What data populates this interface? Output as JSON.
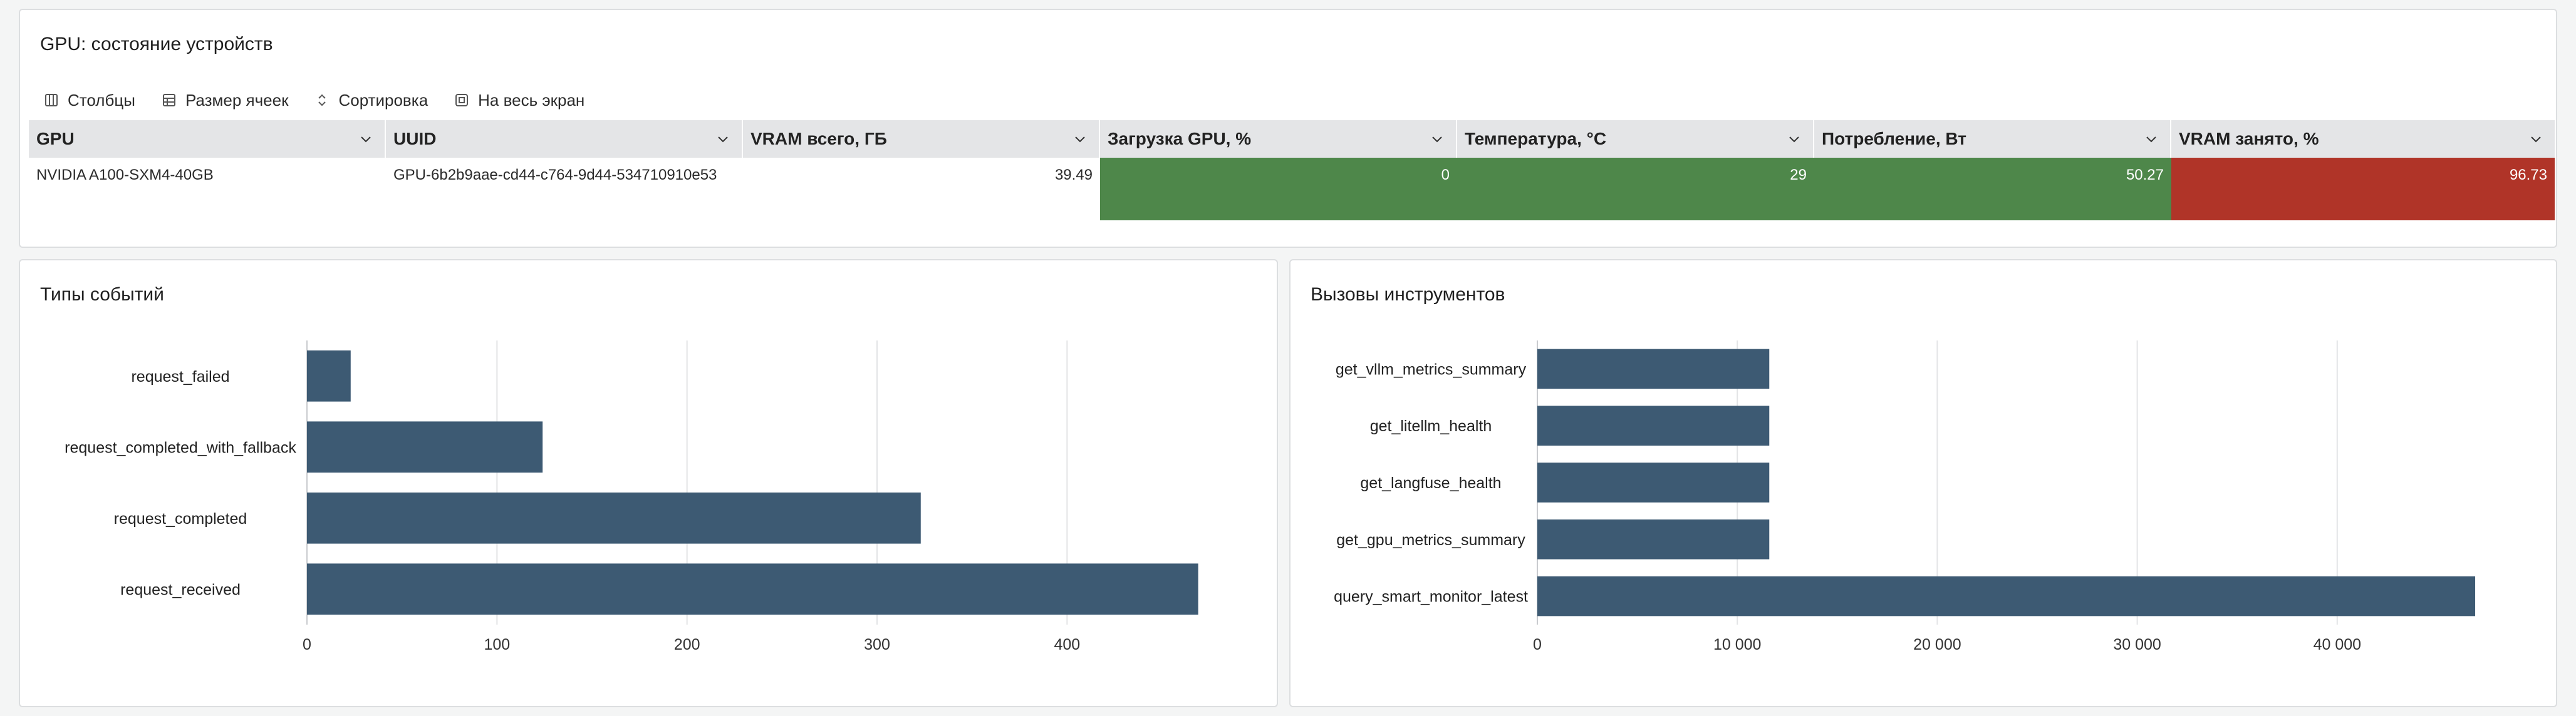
{
  "gpu_panel": {
    "title": "GPU: состояние устройств",
    "toolbar": {
      "columns": "Столбцы",
      "cell_size": "Размер ячеек",
      "sort": "Сортировка",
      "fullscreen": "На весь экран"
    },
    "columns": [
      {
        "key": "gpu",
        "label": "GPU"
      },
      {
        "key": "uuid",
        "label": "UUID"
      },
      {
        "key": "vram_total",
        "label": "VRAM всего, ГБ"
      },
      {
        "key": "gpu_load",
        "label": "Загрузка GPU, %"
      },
      {
        "key": "temperature",
        "label": "Температура, °C"
      },
      {
        "key": "power",
        "label": "Потребление, Вт"
      },
      {
        "key": "vram_used",
        "label": "VRAM занято, %"
      }
    ],
    "rows": [
      {
        "gpu": "NVIDIA A100-SXM4-40GB",
        "uuid": "GPU-6b2b9aae-cd44-c764-9d44-534710910e53",
        "vram_total": "39.49",
        "gpu_load": "0",
        "temperature": "29",
        "power": "50.27",
        "vram_used": "96.73"
      }
    ],
    "colors": {
      "ok": "#4e874a",
      "critical": "#b03428",
      "header_bg": "#e4e5e7"
    }
  },
  "events_panel": {
    "title": "Типы событий",
    "chart_data": {
      "type": "bar",
      "orientation": "horizontal",
      "categories": [
        "request_failed",
        "request_completed_with_fallback",
        "request_completed",
        "request_received"
      ],
      "values": [
        23,
        124,
        323,
        469
      ],
      "xlim": [
        0,
        480
      ],
      "xticks": [
        0,
        100,
        200,
        300,
        400
      ],
      "xtick_labels": [
        "0",
        "100",
        "200",
        "300",
        "400"
      ],
      "grid": true,
      "color": "#3d5a73"
    }
  },
  "tools_panel": {
    "title": "Вызовы инструментов",
    "chart_data": {
      "type": "bar",
      "orientation": "horizontal",
      "categories": [
        "get_vllm_metrics_summary",
        "get_litellm_health",
        "get_langfuse_health",
        "get_gpu_metrics_summary",
        "query_smart_monitor_latest"
      ],
      "values": [
        11600,
        11600,
        11600,
        11600,
        46900
      ],
      "xlim": [
        0,
        50000
      ],
      "xticks": [
        0,
        10000,
        20000,
        30000,
        40000
      ],
      "xtick_labels": [
        "0",
        "10 000",
        "20 000",
        "30 000",
        "40 000"
      ],
      "grid": true,
      "color": "#3d5a73"
    }
  }
}
